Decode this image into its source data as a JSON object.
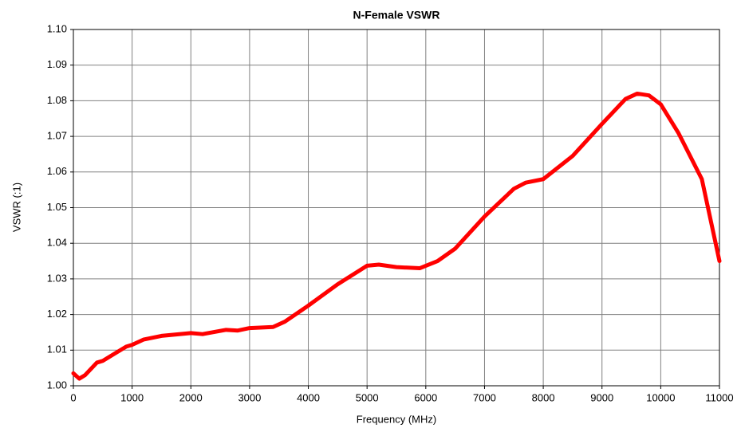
{
  "chart_data": {
    "type": "line",
    "title": "N-Female VSWR",
    "x_label": "Frequency (MHz)",
    "y_label": "VSWR (:1)",
    "x": [
      0,
      100,
      200,
      400,
      500,
      700,
      900,
      1000,
      1200,
      1500,
      2000,
      2200,
      2600,
      2800,
      3000,
      3400,
      3600,
      4000,
      4500,
      5000,
      5200,
      5500,
      5900,
      6200,
      6500,
      7000,
      7500,
      7700,
      8000,
      8500,
      9000,
      9400,
      9600,
      9800,
      10000,
      10300,
      10700,
      11000
    ],
    "series": [
      {
        "name": "VSWR",
        "color": "#ff0000",
        "values": [
          1.0035,
          1.002,
          1.003,
          1.0065,
          1.007,
          1.009,
          1.011,
          1.0115,
          1.013,
          1.014,
          1.0148,
          1.0145,
          1.0157,
          1.0155,
          1.0162,
          1.0165,
          1.018,
          1.0225,
          1.0285,
          1.0337,
          1.034,
          1.0333,
          1.033,
          1.035,
          1.0385,
          1.0475,
          1.0553,
          1.057,
          1.058,
          1.0645,
          1.0735,
          1.0805,
          1.082,
          1.0815,
          1.079,
          1.071,
          1.058,
          1.035
        ]
      }
    ],
    "xlim": [
      0,
      11000
    ],
    "xticks": [
      0,
      1000,
      2000,
      3000,
      4000,
      5000,
      6000,
      7000,
      8000,
      9000,
      10000,
      11000
    ],
    "ylim": [
      1.0,
      1.1
    ],
    "yticks": [
      {
        "value": 1.0,
        "label": "1.00"
      },
      1.01,
      1.02,
      1.03,
      1.04,
      1.05,
      1.06,
      1.07,
      1.08,
      1.09,
      {
        "value": 1.1,
        "label": "1.10"
      }
    ],
    "grid": true
  }
}
